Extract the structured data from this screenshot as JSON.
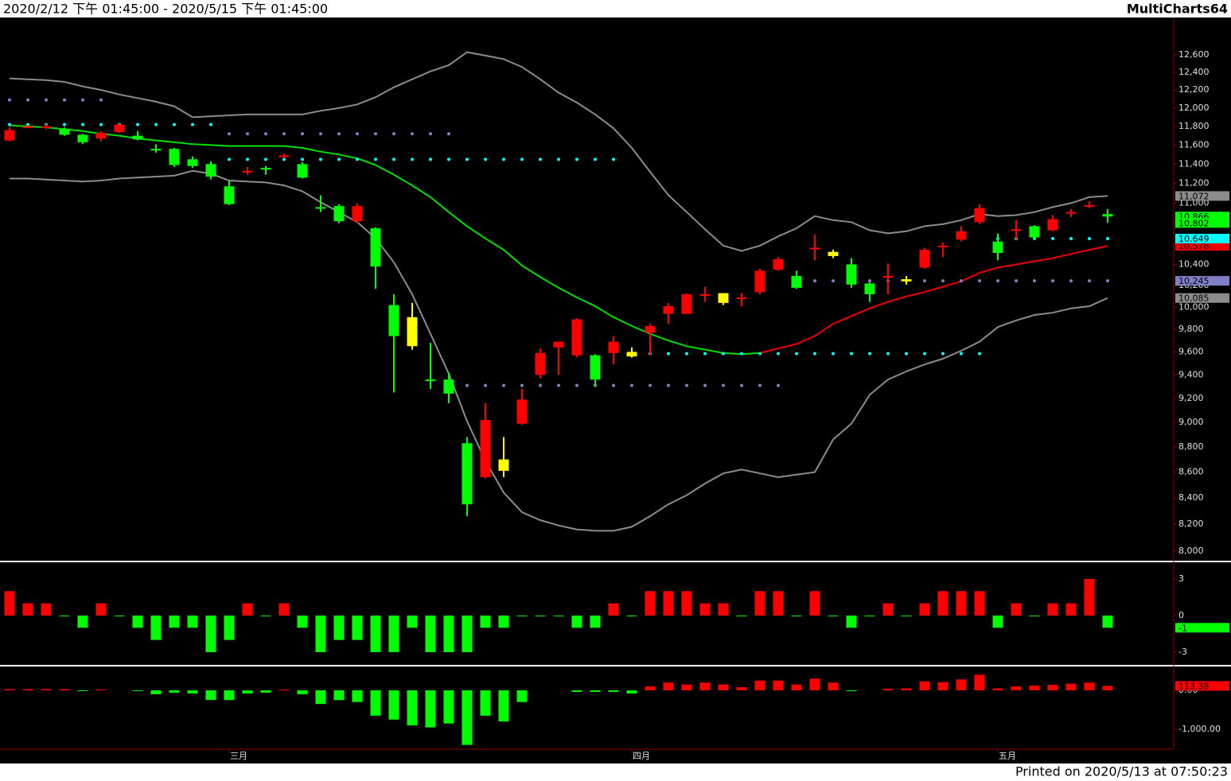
{
  "header": {
    "range": "2020/2/12 下午 01:45:00 - 2020/5/15 下午 01:45:00",
    "brand": "MultiCharts64"
  },
  "footer": "Printed on 2020/5/13 at 07:50:23",
  "chart_data": [
    {
      "type": "candlestick",
      "log_scale": true,
      "categories": [
        null,
        null,
        null,
        null,
        null,
        null,
        null,
        null,
        null,
        null,
        null,
        null,
        "三月",
        null,
        null,
        null,
        null,
        null,
        null,
        null,
        null,
        null,
        null,
        null,
        null,
        null,
        null,
        null,
        null,
        null,
        null,
        null,
        null,
        null,
        "四月",
        null,
        null,
        null,
        null,
        null,
        null,
        null,
        null,
        null,
        null,
        null,
        null,
        null,
        null,
        null,
        null,
        null,
        null,
        null,
        "五月",
        null,
        null,
        null,
        null,
        null,
        null
      ],
      "ylim": [
        7930,
        12980
      ],
      "yticks": [
        {
          "value": 8000,
          "label": "8,000"
        },
        {
          "value": 8200,
          "label": "8,200"
        },
        {
          "value": 8400,
          "label": "8,400"
        },
        {
          "value": 8600,
          "label": "8,600"
        },
        {
          "value": 8800,
          "label": "8,800"
        },
        {
          "value": 9000,
          "label": "9,000"
        },
        {
          "value": 9200,
          "label": "9,200"
        },
        {
          "value": 9400,
          "label": "9,400"
        },
        {
          "value": 9600,
          "label": "9,600"
        },
        {
          "value": 9800,
          "label": "9,800"
        },
        {
          "value": 10000,
          "label": "10,000"
        },
        {
          "value": 10200,
          "label": "10,200"
        },
        {
          "value": 10400,
          "label": "10,400"
        },
        {
          "value": 10600,
          "label": "10,600"
        },
        {
          "value": 10800,
          "label": "10,800"
        },
        {
          "value": 11000,
          "label": "11,000"
        },
        {
          "value": 11200,
          "label": "11,200"
        },
        {
          "value": 11400,
          "label": "11,400"
        },
        {
          "value": 11600,
          "label": "11,600"
        },
        {
          "value": 11800,
          "label": "11,800"
        },
        {
          "value": 12000,
          "label": "12,000"
        },
        {
          "value": 12200,
          "label": "12,200"
        },
        {
          "value": 12400,
          "label": "12,400"
        },
        {
          "value": 12600,
          "label": "12,600"
        }
      ],
      "open": [
        11650,
        11790,
        11790,
        11770,
        11710,
        11670,
        11740,
        11700,
        11560,
        11560,
        11450,
        11400,
        11170,
        11320,
        11360,
        11480,
        11400,
        10960,
        10970,
        10820,
        10750,
        10020,
        9910,
        9360,
        9360,
        8830,
        8560,
        8700,
        8990,
        9400,
        9640,
        9570,
        9570,
        9590,
        9600,
        9770,
        9940,
        9940,
        10110,
        10130,
        10080,
        10140,
        10350,
        10290,
        10550,
        10520,
        10400,
        10220,
        10280,
        10260,
        10370,
        10570,
        10640,
        10810,
        10620,
        10730,
        10770,
        10730,
        10900,
        10970,
        10890
      ],
      "high": [
        11790,
        11810,
        11830,
        11790,
        11720,
        11750,
        11830,
        11750,
        11610,
        11570,
        11480,
        11430,
        11230,
        11370,
        11380,
        11510,
        11420,
        11080,
        10990,
        11000,
        10760,
        10120,
        10040,
        9680,
        9420,
        8880,
        9160,
        8880,
        9280,
        9630,
        9690,
        9900,
        9580,
        9740,
        9640,
        9850,
        10040,
        10130,
        10190,
        10130,
        10130,
        10360,
        10470,
        10340,
        10690,
        10540,
        10460,
        10230,
        10410,
        10290,
        10560,
        10610,
        10770,
        10990,
        10700,
        10830,
        10780,
        10880,
        10940,
        11020,
        10940
      ],
      "low": [
        11640,
        11780,
        11770,
        11700,
        11610,
        11640,
        11730,
        11650,
        11520,
        11370,
        11360,
        11240,
        10980,
        11290,
        11290,
        11460,
        11250,
        10910,
        10800,
        10800,
        10170,
        9250,
        9620,
        9280,
        9160,
        8260,
        8550,
        8560,
        8980,
        9370,
        9400,
        9550,
        9300,
        9490,
        9550,
        9570,
        9850,
        9940,
        10050,
        10020,
        10010,
        10120,
        10340,
        10170,
        10440,
        10460,
        10180,
        10050,
        10120,
        10210,
        10360,
        10470,
        10620,
        10790,
        10440,
        10640,
        10640,
        10720,
        10860,
        10950,
        10802
      ],
      "close": [
        11760,
        11800,
        11800,
        11710,
        11630,
        11730,
        11820,
        11660,
        11550,
        11390,
        11380,
        11270,
        10990,
        11330,
        11350,
        11490,
        11260,
        10950,
        10820,
        10970,
        10380,
        9740,
        9650,
        9350,
        9240,
        8350,
        9020,
        8610,
        9190,
        9590,
        9690,
        9890,
        9360,
        9690,
        9560,
        9830,
        10010,
        10120,
        10120,
        10040,
        10090,
        10340,
        10450,
        10180,
        10560,
        10480,
        10210,
        10120,
        10290,
        10240,
        10540,
        10580,
        10720,
        10950,
        10510,
        10740,
        10660,
        10840,
        10910,
        10980,
        10866
      ],
      "candle_colors": [
        "#ff0000",
        "#ff0000",
        "#ff0000",
        "#00ff00",
        "#00ff00",
        "#ff0000",
        "#ff0000",
        "#00ff00",
        "#00ff00",
        "#00ff00",
        "#00ff00",
        "#00ff00",
        "#00ff00",
        "#ff0000",
        "#00ff00",
        "#ff0000",
        "#00ff00",
        "#00ff00",
        "#00ff00",
        "#ff0000",
        "#00ff00",
        "#00ff00",
        "#ffff00",
        "#00ff00",
        "#00ff00",
        "#00ff00",
        "#ff0000",
        "#ffff00",
        "#ff0000",
        "#ff0000",
        "#ff0000",
        "#ff0000",
        "#00ff00",
        "#ff0000",
        "#ffff00",
        "#ff0000",
        "#ff0000",
        "#ff0000",
        "#ff0000",
        "#ffff00",
        "#ff0000",
        "#ff0000",
        "#ff0000",
        "#00ff00",
        "#ff0000",
        "#ffff00",
        "#00ff00",
        "#00ff00",
        "#ff0000",
        "#ffff00",
        "#ff0000",
        "#ff0000",
        "#ff0000",
        "#ff0000",
        "#00ff00",
        "#ff0000",
        "#00ff00",
        "#ff0000",
        "#ff0000",
        "#ff0000",
        "#00ff00"
      ],
      "close_label": "10,866",
      "low_label": "10,802",
      "label_color": "#00ff00",
      "lines": [
        {
          "color": "#8c8c8c",
          "last_label": "11,072",
          "values": [
            12330,
            12320,
            12310,
            12290,
            12240,
            12200,
            12150,
            12110,
            12070,
            12020,
            11900,
            11910,
            11920,
            11930,
            11930,
            11930,
            11930,
            11970,
            12000,
            12040,
            12120,
            12230,
            12320,
            12410,
            12480,
            12630,
            12590,
            12550,
            12460,
            12320,
            12170,
            12060,
            11930,
            11780,
            11570,
            11320,
            11080,
            10910,
            10740,
            10580,
            10530,
            10580,
            10670,
            10750,
            10870,
            10830,
            10810,
            10730,
            10700,
            10720,
            10770,
            10790,
            10830,
            10890,
            10870,
            10880,
            10910,
            10960,
            11000,
            11060,
            11072
          ]
        },
        {
          "color": "#00e000",
          "values": [
            11810,
            11800,
            11790,
            11770,
            11750,
            11720,
            11700,
            11670,
            11650,
            11630,
            11610,
            11600,
            11590,
            11590,
            11590,
            11590,
            11570,
            11530,
            11500,
            11460,
            11390,
            11290,
            11180,
            11060,
            10910,
            10770,
            10650,
            10540,
            10390,
            10280,
            10180,
            10090,
            10010,
            9910,
            9830,
            9760,
            9700,
            9650,
            9620,
            9590,
            9580,
            9590,
            null,
            null,
            null,
            null,
            null,
            null,
            null,
            null,
            null,
            null,
            null,
            null,
            null,
            null,
            null,
            null,
            null,
            null,
            null
          ]
        },
        {
          "color": "#ee0000",
          "last_label": "10,578",
          "values": [
            null,
            null,
            null,
            null,
            null,
            null,
            null,
            null,
            null,
            null,
            null,
            null,
            null,
            null,
            null,
            null,
            null,
            null,
            null,
            null,
            null,
            null,
            null,
            null,
            null,
            null,
            null,
            null,
            null,
            null,
            null,
            null,
            null,
            null,
            null,
            null,
            null,
            null,
            null,
            null,
            null,
            9590,
            9630,
            9670,
            9740,
            9850,
            9920,
            9990,
            10050,
            10100,
            10140,
            10190,
            10240,
            10320,
            10370,
            10400,
            10430,
            10460,
            10500,
            10540,
            10578
          ]
        },
        {
          "color": "#8c8c8c",
          "last_label": "10,085",
          "values": [
            11250,
            11250,
            11240,
            11230,
            11220,
            11230,
            11250,
            11260,
            11270,
            11280,
            11330,
            11300,
            11230,
            11220,
            11210,
            11180,
            11120,
            11010,
            10910,
            10810,
            10650,
            10420,
            10120,
            9760,
            9410,
            9010,
            8690,
            8440,
            8290,
            8230,
            8190,
            8160,
            8150,
            8150,
            8180,
            8260,
            8350,
            8420,
            8510,
            8590,
            8620,
            8590,
            8560,
            8580,
            8600,
            8860,
            8990,
            9230,
            9360,
            9430,
            9490,
            9540,
            9610,
            9690,
            9820,
            9880,
            9930,
            9950,
            9990,
            10010,
            10085
          ]
        }
      ],
      "levels": [
        {
          "value": 12090,
          "color": "#8080c8",
          "start": 0,
          "end": 5
        },
        {
          "value": 11720,
          "color": "#8080c8",
          "start": 12,
          "end": 24
        },
        {
          "value": 9310,
          "color": "#8080c8",
          "start": 25,
          "end": 42
        },
        {
          "value": 10245,
          "color": "#8080c8",
          "start": 44,
          "end": 60,
          "label": "10,245"
        },
        {
          "value": 11820,
          "color": "#00ffff",
          "start": 0,
          "end": 11
        },
        {
          "value": 11450,
          "color": "#00ffff",
          "start": 12,
          "end": 33
        },
        {
          "value": 9585,
          "color": "#00ffff",
          "start": 35,
          "end": 53
        },
        {
          "value": 10649,
          "color": "#00ffff",
          "start": 54,
          "end": 60,
          "label": "10,649"
        }
      ]
    },
    {
      "type": "bar",
      "ylim": [
        -3.98,
        4.3
      ],
      "yticks": [
        3,
        0,
        -3
      ],
      "up_color": "#ff0000",
      "down_color": "#00ff00",
      "show_zero": true,
      "last_label": "-1",
      "values": [
        2,
        1,
        1,
        0,
        -1,
        1,
        0,
        -1,
        -2,
        -1,
        -1,
        -3,
        -2,
        1,
        0,
        1,
        -1,
        -3,
        -2,
        -2,
        -3,
        -3,
        -1,
        -3,
        -3,
        -3,
        -1,
        -1,
        0,
        0,
        0,
        -1,
        -1,
        1,
        0,
        2,
        2,
        2,
        1,
        1,
        0,
        2,
        2,
        0,
        2,
        0,
        -1,
        0,
        1,
        0,
        1,
        2,
        2,
        2,
        -1,
        1,
        0,
        1,
        1,
        3,
        -1
      ]
    },
    {
      "type": "bar",
      "ylim": [
        -1469,
        571
      ],
      "yticks": [
        {
          "value": 0,
          "label": "0.00"
        },
        {
          "value": -1000,
          "label": "-1,000.00"
        }
      ],
      "up_color": "#ff0000",
      "down_color": "#00ff00",
      "show_zero": false,
      "last_label": "113.38",
      "values": [
        30,
        30,
        30,
        30,
        -20,
        20,
        0,
        -10,
        -100,
        -60,
        -80,
        -245,
        -250,
        -80,
        -60,
        20,
        -100,
        -350,
        -250,
        -300,
        -650,
        -750,
        -900,
        -950,
        -850,
        -1400,
        -650,
        -800,
        -300,
        0,
        0,
        -40,
        -40,
        -40,
        -80,
        100,
        200,
        150,
        200,
        150,
        80,
        250,
        250,
        150,
        300,
        200,
        -20,
        0,
        40,
        50,
        230,
        210,
        280,
        400,
        50,
        100,
        120,
        140,
        170,
        200,
        113.38
      ]
    }
  ]
}
